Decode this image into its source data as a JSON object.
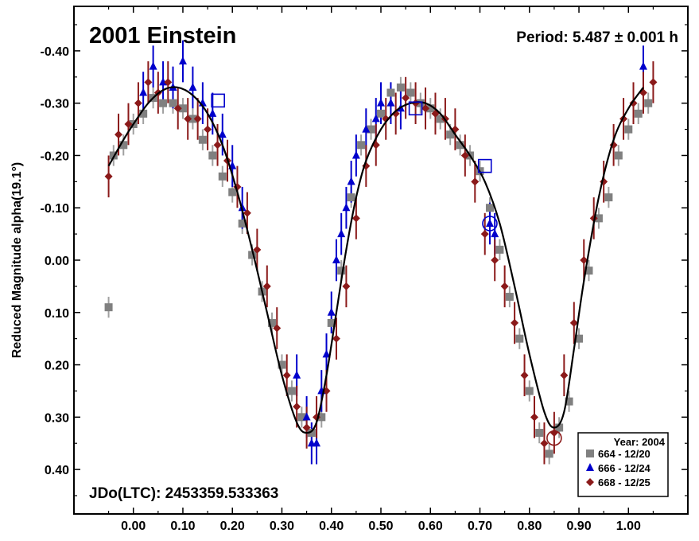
{
  "chart_data": {
    "type": "scatter",
    "title": "2001 Einstein",
    "period_label": "Period: 5.487 ± 0.001 h",
    "epoch_label": "JDo(LTC): 2453359.533363",
    "xlabel": "",
    "ylabel": "Reduced Magnitude alpha(19.1°)",
    "xlim": [
      -0.12,
      1.12
    ],
    "ylim": [
      0.485,
      -0.485
    ],
    "y_inverted": true,
    "x_ticks": [
      "0.00",
      "0.10",
      "0.20",
      "0.30",
      "0.40",
      "0.50",
      "0.60",
      "0.70",
      "0.80",
      "0.90",
      "1.00"
    ],
    "x_tick_values": [
      0,
      0.1,
      0.2,
      0.3,
      0.4,
      0.5,
      0.6,
      0.7,
      0.8,
      0.9,
      1.0
    ],
    "y_ticks": [
      "-0.40",
      "-0.30",
      "-0.20",
      "-0.10",
      "0.00",
      "0.10",
      "0.20",
      "0.30",
      "0.40"
    ],
    "y_tick_values": [
      -0.4,
      -0.3,
      -0.2,
      -0.1,
      0,
      0.1,
      0.2,
      0.3,
      0.4
    ],
    "grid": false,
    "legend_placement": "bottom-right",
    "legend_title": "Year: 2004",
    "series": [
      {
        "name": "664 - 12/20",
        "marker": "square",
        "color": "#808080",
        "errcolor": "#a0a0a0",
        "x": [
          -0.05,
          -0.04,
          -0.02,
          0.0,
          0.02,
          0.04,
          0.06,
          0.08,
          0.1,
          0.12,
          0.14,
          0.16,
          0.18,
          0.2,
          0.22,
          0.24,
          0.26,
          0.28,
          0.3,
          0.32,
          0.34,
          0.36,
          0.38,
          0.4,
          0.42,
          0.44,
          0.46,
          0.48,
          0.5,
          0.52,
          0.54,
          0.56,
          0.58,
          0.6,
          0.62,
          0.64,
          0.66,
          0.68,
          0.7,
          0.72,
          0.74,
          0.76,
          0.78,
          0.8,
          0.82,
          0.84,
          0.86,
          0.88,
          0.9,
          0.92,
          0.94,
          0.96,
          0.98,
          1.0,
          1.02,
          1.04
        ],
        "y": [
          0.09,
          -0.2,
          -0.22,
          -0.26,
          -0.28,
          -0.31,
          -0.3,
          -0.3,
          -0.29,
          -0.27,
          -0.23,
          -0.2,
          -0.16,
          -0.13,
          -0.07,
          -0.01,
          0.06,
          0.12,
          0.2,
          0.25,
          0.3,
          0.33,
          0.3,
          0.12,
          0.02,
          -0.12,
          -0.22,
          -0.25,
          -0.28,
          -0.32,
          -0.33,
          -0.32,
          -0.3,
          -0.29,
          -0.27,
          -0.24,
          -0.22,
          -0.2,
          -0.17,
          -0.1,
          -0.02,
          0.07,
          0.15,
          0.25,
          0.33,
          0.37,
          0.32,
          0.27,
          0.15,
          0.02,
          -0.08,
          -0.12,
          -0.2,
          -0.25,
          -0.28,
          -0.3
        ]
      },
      {
        "name": "666 - 12/24",
        "marker": "triangle",
        "color": "#0000cc",
        "errcolor": "#0000cc",
        "x": [
          0.02,
          0.04,
          0.06,
          0.08,
          0.1,
          0.12,
          0.14,
          0.16,
          0.18,
          0.2,
          0.22,
          0.33,
          0.35,
          0.36,
          0.37,
          0.38,
          0.39,
          0.4,
          0.41,
          0.42,
          0.43,
          0.44,
          0.45,
          0.47,
          0.49,
          0.5,
          0.52,
          0.54,
          0.72,
          0.73,
          1.03
        ],
        "y": [
          -0.32,
          -0.37,
          -0.34,
          -0.33,
          -0.38,
          -0.33,
          -0.3,
          -0.28,
          -0.24,
          -0.18,
          -0.1,
          0.22,
          0.3,
          0.35,
          0.35,
          0.25,
          0.18,
          0.1,
          0.0,
          -0.05,
          -0.1,
          -0.15,
          -0.2,
          -0.25,
          -0.27,
          -0.3,
          -0.3,
          -0.29,
          -0.07,
          -0.05,
          -0.37
        ]
      },
      {
        "name": "668 - 12/25",
        "marker": "diamond",
        "color": "#8b1a1a",
        "errcolor": "#8b1a1a",
        "x": [
          -0.05,
          -0.03,
          -0.01,
          0.01,
          0.03,
          0.05,
          0.07,
          0.09,
          0.11,
          0.13,
          0.15,
          0.17,
          0.19,
          0.21,
          0.23,
          0.25,
          0.27,
          0.29,
          0.31,
          0.33,
          0.35,
          0.37,
          0.39,
          0.41,
          0.43,
          0.45,
          0.47,
          0.49,
          0.51,
          0.53,
          0.55,
          0.57,
          0.59,
          0.61,
          0.63,
          0.65,
          0.67,
          0.69,
          0.71,
          0.73,
          0.75,
          0.77,
          0.79,
          0.81,
          0.83,
          0.85,
          0.87,
          0.89,
          0.91,
          0.93,
          0.95,
          0.97,
          0.99,
          1.01,
          1.03,
          1.05
        ],
        "y": [
          -0.16,
          -0.24,
          -0.26,
          -0.3,
          -0.34,
          -0.32,
          -0.34,
          -0.29,
          -0.27,
          -0.27,
          -0.25,
          -0.22,
          -0.19,
          -0.14,
          -0.09,
          -0.02,
          0.05,
          0.13,
          0.22,
          0.28,
          0.32,
          0.3,
          0.25,
          0.15,
          0.05,
          -0.08,
          -0.18,
          -0.22,
          -0.27,
          -0.28,
          -0.31,
          -0.3,
          -0.29,
          -0.28,
          -0.27,
          -0.25,
          -0.2,
          -0.15,
          -0.05,
          0.0,
          0.05,
          0.12,
          0.22,
          0.3,
          0.35,
          0.33,
          0.22,
          0.12,
          0.0,
          -0.08,
          -0.15,
          -0.22,
          -0.27,
          -0.3,
          -0.32,
          -0.34
        ]
      }
    ],
    "fit_curve": {
      "x": [
        -0.05,
        -0.02,
        0.0,
        0.03,
        0.06,
        0.09,
        0.12,
        0.15,
        0.18,
        0.21,
        0.24,
        0.27,
        0.3,
        0.33,
        0.35,
        0.37,
        0.39,
        0.41,
        0.43,
        0.45,
        0.47,
        0.5,
        0.53,
        0.56,
        0.59,
        0.62,
        0.65,
        0.68,
        0.71,
        0.74,
        0.77,
        0.8,
        0.83,
        0.85,
        0.87,
        0.89,
        0.91,
        0.94,
        0.97,
        1.0,
        1.03
      ],
      "y": [
        -0.18,
        -0.23,
        -0.26,
        -0.3,
        -0.325,
        -0.33,
        -0.315,
        -0.28,
        -0.22,
        -0.13,
        -0.02,
        0.1,
        0.22,
        0.31,
        0.33,
        0.31,
        0.22,
        0.1,
        -0.02,
        -0.12,
        -0.19,
        -0.25,
        -0.285,
        -0.3,
        -0.3,
        -0.28,
        -0.24,
        -0.2,
        -0.15,
        -0.07,
        0.05,
        0.18,
        0.29,
        0.32,
        0.29,
        0.17,
        0.04,
        -0.12,
        -0.23,
        -0.29,
        -0.33
      ]
    },
    "highlight_markers": [
      {
        "series": "666 - 12/24",
        "shape": "square",
        "x": 0.171,
        "y": -0.305
      },
      {
        "series": "666 - 12/24",
        "shape": "square",
        "x": 0.57,
        "y": -0.29
      },
      {
        "series": "666 - 12/24",
        "shape": "square",
        "x": 0.71,
        "y": -0.18
      },
      {
        "series": "666 - 12/24",
        "shape": "circle",
        "x": 0.72,
        "y": -0.07
      },
      {
        "series": "668 - 12/25",
        "shape": "circle",
        "x": 0.85,
        "y": 0.34
      }
    ]
  }
}
